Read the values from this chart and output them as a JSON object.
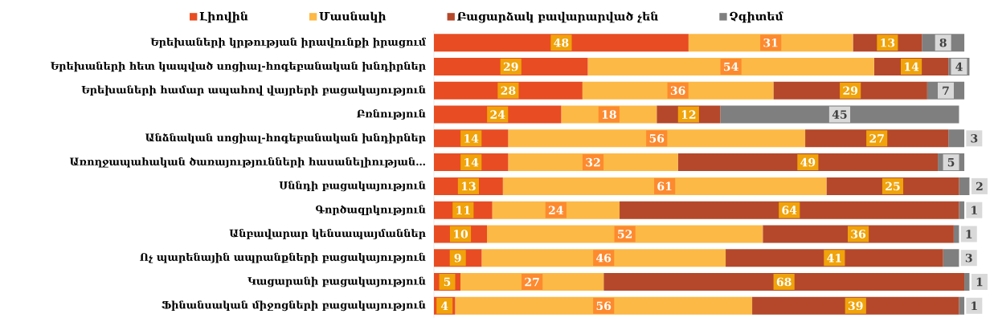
{
  "chart_data": {
    "type": "bar",
    "orientation": "horizontal",
    "stacked": true,
    "data_labels": true,
    "legend": "top",
    "tick_labels": "y",
    "categories": [
      "Երեխաների կրթության իրավունքի իրացում",
      "Երեխաների հետ կապված սոցիալ-հոգեբանական խնդիրներ",
      "Երեխաների համար ապահով վայրերի բացակայություն",
      "Բռնություն",
      "Անձնական սոցիալ-հոգեբանական խնդիրներ",
      "Առողջապահական ծառայությունների հասանելիության…",
      "Սննդի բացակայություն",
      "Գործազրկություն",
      "Անբավարար կենսապայմաններ",
      "Ոչ պարենային ապրանքների բացակայություն",
      "Կացարանի բացակայություն",
      "Ֆինանսական միջոցների բացակայություն"
    ],
    "series": [
      {
        "name": "Լիովին",
        "color": "#e84c22",
        "values": [
          48,
          29,
          28,
          24,
          14,
          14,
          13,
          11,
          10,
          9,
          5,
          4
        ]
      },
      {
        "name": "Մասնակի",
        "color": "#fdb945",
        "values": [
          31,
          54,
          36,
          18,
          56,
          32,
          61,
          24,
          52,
          46,
          27,
          56
        ]
      },
      {
        "name": "Բացարձակ բավարարված չեն",
        "color": "#b5482a",
        "values": [
          13,
          14,
          29,
          12,
          27,
          49,
          25,
          64,
          36,
          41,
          68,
          39
        ]
      },
      {
        "name": "Չգիտեմ",
        "color": "#7f7f7f",
        "values": [
          8,
          4,
          7,
          45,
          3,
          5,
          2,
          1,
          1,
          3,
          1,
          1
        ]
      }
    ]
  }
}
